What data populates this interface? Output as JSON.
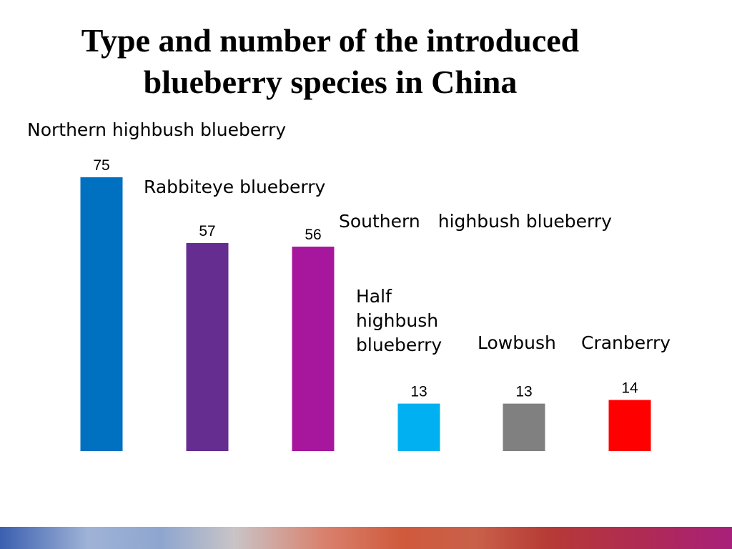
{
  "title_lines": [
    "Type and number of the introduced",
    "blueberry species in China"
  ],
  "chart_data": {
    "type": "bar",
    "title": "Type and number of the introduced blueberry species in China",
    "categories": [
      "Northern highbush blueberry",
      "Rabbiteye blueberry",
      "Southern　highbush blueberry",
      "Half highbush blueberry",
      "Lowbush",
      "Cranberry"
    ],
    "values": [
      75,
      57,
      56,
      13,
      13,
      14
    ],
    "colors": [
      "#0070c0",
      "#662d91",
      "#a6179d",
      "#00b0f0",
      "#808080",
      "#ff0000"
    ],
    "ylim": [
      0,
      75
    ],
    "grid": false,
    "legend": "none",
    "xlabel": "",
    "ylabel": ""
  }
}
